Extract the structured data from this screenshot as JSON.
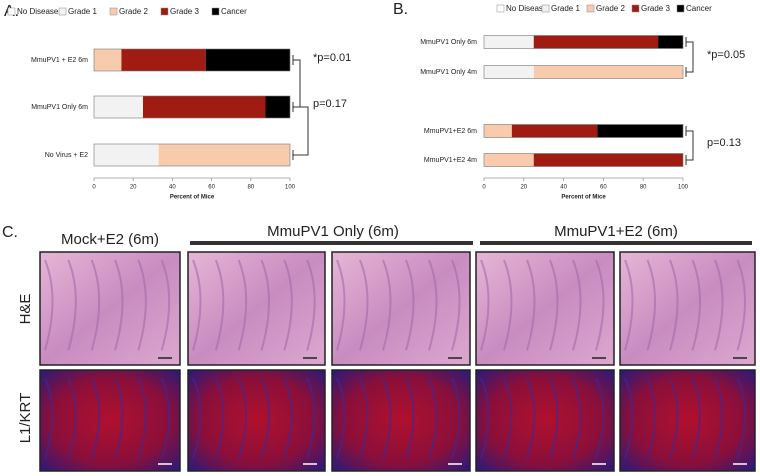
{
  "chart_data": [
    {
      "type": "bar",
      "orientation": "horizontal",
      "stacked": true,
      "panel_label": "A.",
      "categories": [
        "MmuPV1 + E2 6m",
        "MmuPV1 Only 6m",
        "No Virus + E2"
      ],
      "series": [
        {
          "name": "No Disease",
          "color": "#ffffff",
          "values": [
            0,
            0,
            0
          ]
        },
        {
          "name": "Grade 1",
          "color": "#f2f2f2",
          "values": [
            0,
            25,
            33
          ]
        },
        {
          "name": "Grade 2",
          "color": "#f8cbad",
          "values": [
            14,
            0,
            67
          ]
        },
        {
          "name": "Grade 3",
          "color": "#a01b12",
          "values": [
            43,
            62.5,
            0
          ]
        },
        {
          "name": "Cancer",
          "color": "#000000",
          "values": [
            43,
            12.5,
            0
          ]
        }
      ],
      "xlabel": "Percent of Mice",
      "xlim": [
        0,
        100
      ],
      "xticks": [
        0,
        20,
        40,
        60,
        80,
        100
      ],
      "annotations": [
        "*p=0.01",
        "p=0.17"
      ]
    },
    {
      "type": "bar",
      "orientation": "horizontal",
      "stacked": true,
      "panel_label": "B.",
      "categories": [
        "MmuPV1 Only 6m",
        "MmuPV1 Only 4m",
        "MmuPV1+E2 6m",
        "MmuPV1+E2 4m"
      ],
      "series": [
        {
          "name": "No Disease",
          "color": "#ffffff",
          "values": [
            0,
            0,
            0,
            0
          ]
        },
        {
          "name": "Grade 1",
          "color": "#f2f2f2",
          "values": [
            25,
            25,
            0,
            0
          ]
        },
        {
          "name": "Grade 2",
          "color": "#f8cbad",
          "values": [
            0,
            75,
            14,
            25
          ]
        },
        {
          "name": "Grade 3",
          "color": "#a01b12",
          "values": [
            62.5,
            0,
            43,
            75
          ]
        },
        {
          "name": "Cancer",
          "color": "#000000",
          "values": [
            12.5,
            0,
            43,
            0
          ]
        }
      ],
      "xlabel": "Percent of Mice",
      "xlim": [
        0,
        100
      ],
      "xticks": [
        0,
        20,
        40,
        60,
        80,
        100
      ],
      "annotations": [
        "*p=0.05",
        "p=0.13"
      ]
    }
  ],
  "panel_c": {
    "label": "C.",
    "columns": [
      "Mock+E2 (6m)",
      "MmuPV1 Only (6m)",
      "MmuPV1+E2 (6m)"
    ],
    "rows": [
      "H&E",
      "L1/KRT"
    ]
  }
}
